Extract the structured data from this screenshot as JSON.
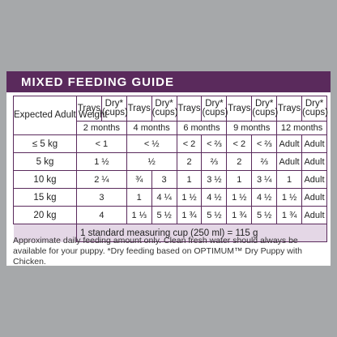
{
  "title": "MIXED FEEDING GUIDE",
  "table": {
    "weight_header": "Expected Adult Weight",
    "columns": [
      {
        "trays": "Trays",
        "dry": "Dry*",
        "unit": "(cups)",
        "age": "2 months"
      },
      {
        "trays": "Trays",
        "dry": "Dry*",
        "unit": "(cups)",
        "age": "4 months"
      },
      {
        "trays": "Trays",
        "dry": "Dry*",
        "unit": "(cups)",
        "age": "6 months"
      },
      {
        "trays": "Trays",
        "dry": "Dry*",
        "unit": "(cups)",
        "age": "9 months"
      },
      {
        "trays": "Trays",
        "dry": "Dry*",
        "unit": "(cups)",
        "age": "12 months"
      }
    ],
    "rows": [
      {
        "weight": "≤ 5 kg",
        "cells": [
          "< 1",
          "< ½",
          "< 2",
          "< ⅔",
          "< 2",
          "< ⅔",
          "Adult",
          "Adult"
        ]
      },
      {
        "weight": "5 kg",
        "cells": [
          "1 ½",
          "½",
          "2",
          "⅔",
          "2",
          "⅔",
          "Adult",
          "Adult"
        ]
      },
      {
        "weight": "10 kg",
        "cells": [
          "2 ¼",
          "¾",
          "3",
          "1",
          "3 ½",
          "1",
          "3 ¼",
          "1",
          "Adult"
        ]
      },
      {
        "weight": "15 kg",
        "cells": [
          "3",
          "1",
          "4 ¼",
          "1 ½",
          "4 ½",
          "1 ½",
          "4 ½",
          "1 ½",
          "Adult"
        ]
      },
      {
        "weight": "20 kg",
        "cells": [
          "4",
          "1 ⅓",
          "5 ½",
          "1 ¾",
          "5 ½",
          "1 ¾",
          "5 ½",
          "1 ¾",
          "Adult"
        ]
      }
    ],
    "footer": "1 standard measuring cup (250 ml) = 115 g"
  },
  "note": "Approximate daily feeding amount only. Clean fresh water should always be available for your puppy. *Dry feeding based on OPTIMUM™ Dry Puppy with Chicken."
}
